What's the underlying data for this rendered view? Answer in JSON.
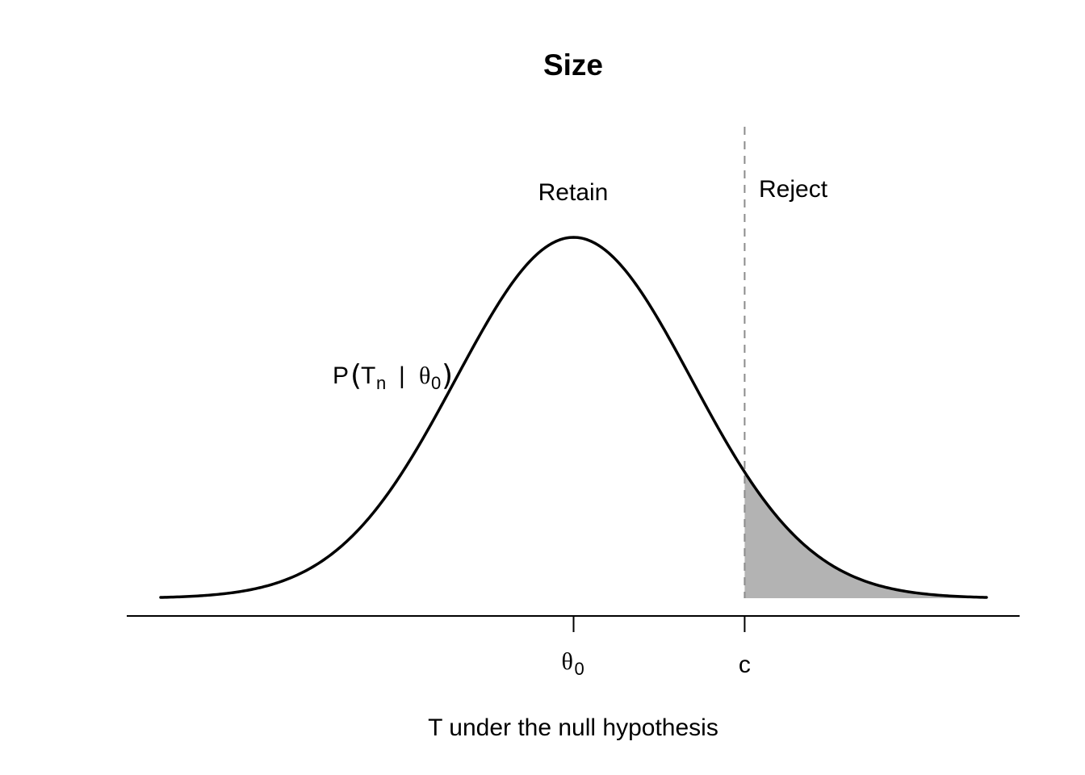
{
  "chart_data": {
    "type": "line",
    "title": "Size",
    "xlabel": "T under the null hypothesis",
    "ylabel": "",
    "distribution": "normal",
    "mean": 0,
    "sd": 1,
    "xlim": [
      -3.5,
      3.5
    ],
    "ylim": [
      0,
      0.45
    ],
    "critical_value": 1.45,
    "ticks": [
      {
        "x": 0,
        "label_main": "θ",
        "label_sub": "0"
      },
      {
        "x": 1.45,
        "label_main": "c",
        "label_sub": ""
      }
    ],
    "regions": {
      "retain": "Retain",
      "reject": "Reject"
    },
    "curve_label": {
      "prefix": "P",
      "open_paren": "(",
      "var": "T",
      "var_sub": "n",
      "bar": "|",
      "param": "θ",
      "param_sub": "0",
      "close_paren": ")"
    },
    "shaded_region": "reject tail",
    "grid": false,
    "legend": "none"
  },
  "colors": {
    "curve": "#000000",
    "shade": "#b3b3b3",
    "cutoff_line": "#8c8c8c",
    "axis": "#000000",
    "background": "#ffffff"
  }
}
